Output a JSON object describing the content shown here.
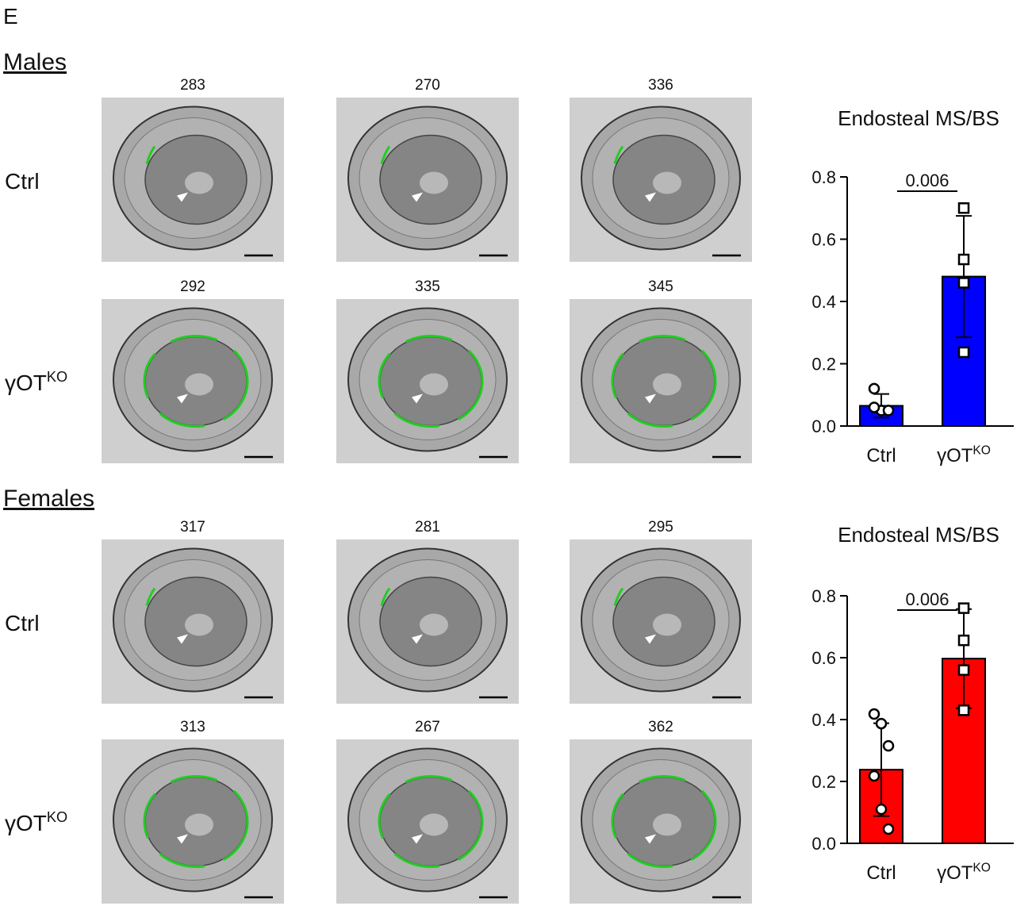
{
  "panel_label": "E",
  "sections": [
    {
      "title": "Males",
      "rows": [
        {
          "label": {
            "label": "Ctrl"
          },
          "images": [
            "283",
            "270",
            "336"
          ]
        },
        {
          "label": {
            "label": "γOT",
            "sup": "KO"
          },
          "images": [
            "292",
            "335",
            "345"
          ]
        }
      ]
    },
    {
      "title": "Females",
      "rows": [
        {
          "label": {
            "label": "Ctrl"
          },
          "images": [
            "317",
            "281",
            "295"
          ]
        },
        {
          "label": {
            "label": "γOT",
            "sup": "KO"
          },
          "images": [
            "313",
            "267",
            "362"
          ]
        }
      ]
    }
  ],
  "chart_data": [
    {
      "type": "bar",
      "title": "Endosteal MS/BS",
      "color": "#0000ff",
      "categories": [
        {
          "label": "Ctrl"
        },
        {
          "label": "γOT",
          "sup": "KO"
        }
      ],
      "values": [
        0.065,
        0.48
      ],
      "errors": [
        0.038,
        0.195
      ],
      "points": [
        [
          0.12,
          0.05,
          0.05,
          0.06
        ],
        [
          0.7,
          0.535,
          0.46,
          0.237
        ]
      ],
      "annotation": "0.006",
      "ylim": [
        0,
        0.8
      ],
      "yticks": [
        {
          "value": 0,
          "label": "0.0"
        },
        0.2,
        0.4,
        0.6,
        0.8
      ]
    },
    {
      "type": "bar",
      "title": "Endosteal MS/BS",
      "color": "#ff0000",
      "categories": [
        {
          "label": "Ctrl"
        },
        {
          "label": "γOT",
          "sup": "KO"
        }
      ],
      "values": [
        0.238,
        0.597
      ],
      "errors": [
        0.15,
        0.16
      ],
      "points": [
        [
          0.418,
          0.387,
          0.315,
          0.218,
          0.11,
          0.046
        ],
        [
          0.76,
          0.656,
          0.56,
          0.43
        ]
      ],
      "annotation": "0.006",
      "ylim": [
        0,
        0.8
      ],
      "yticks": [
        {
          "value": 0,
          "label": "0.0"
        },
        0.2,
        0.4,
        0.6,
        0.8
      ]
    }
  ]
}
